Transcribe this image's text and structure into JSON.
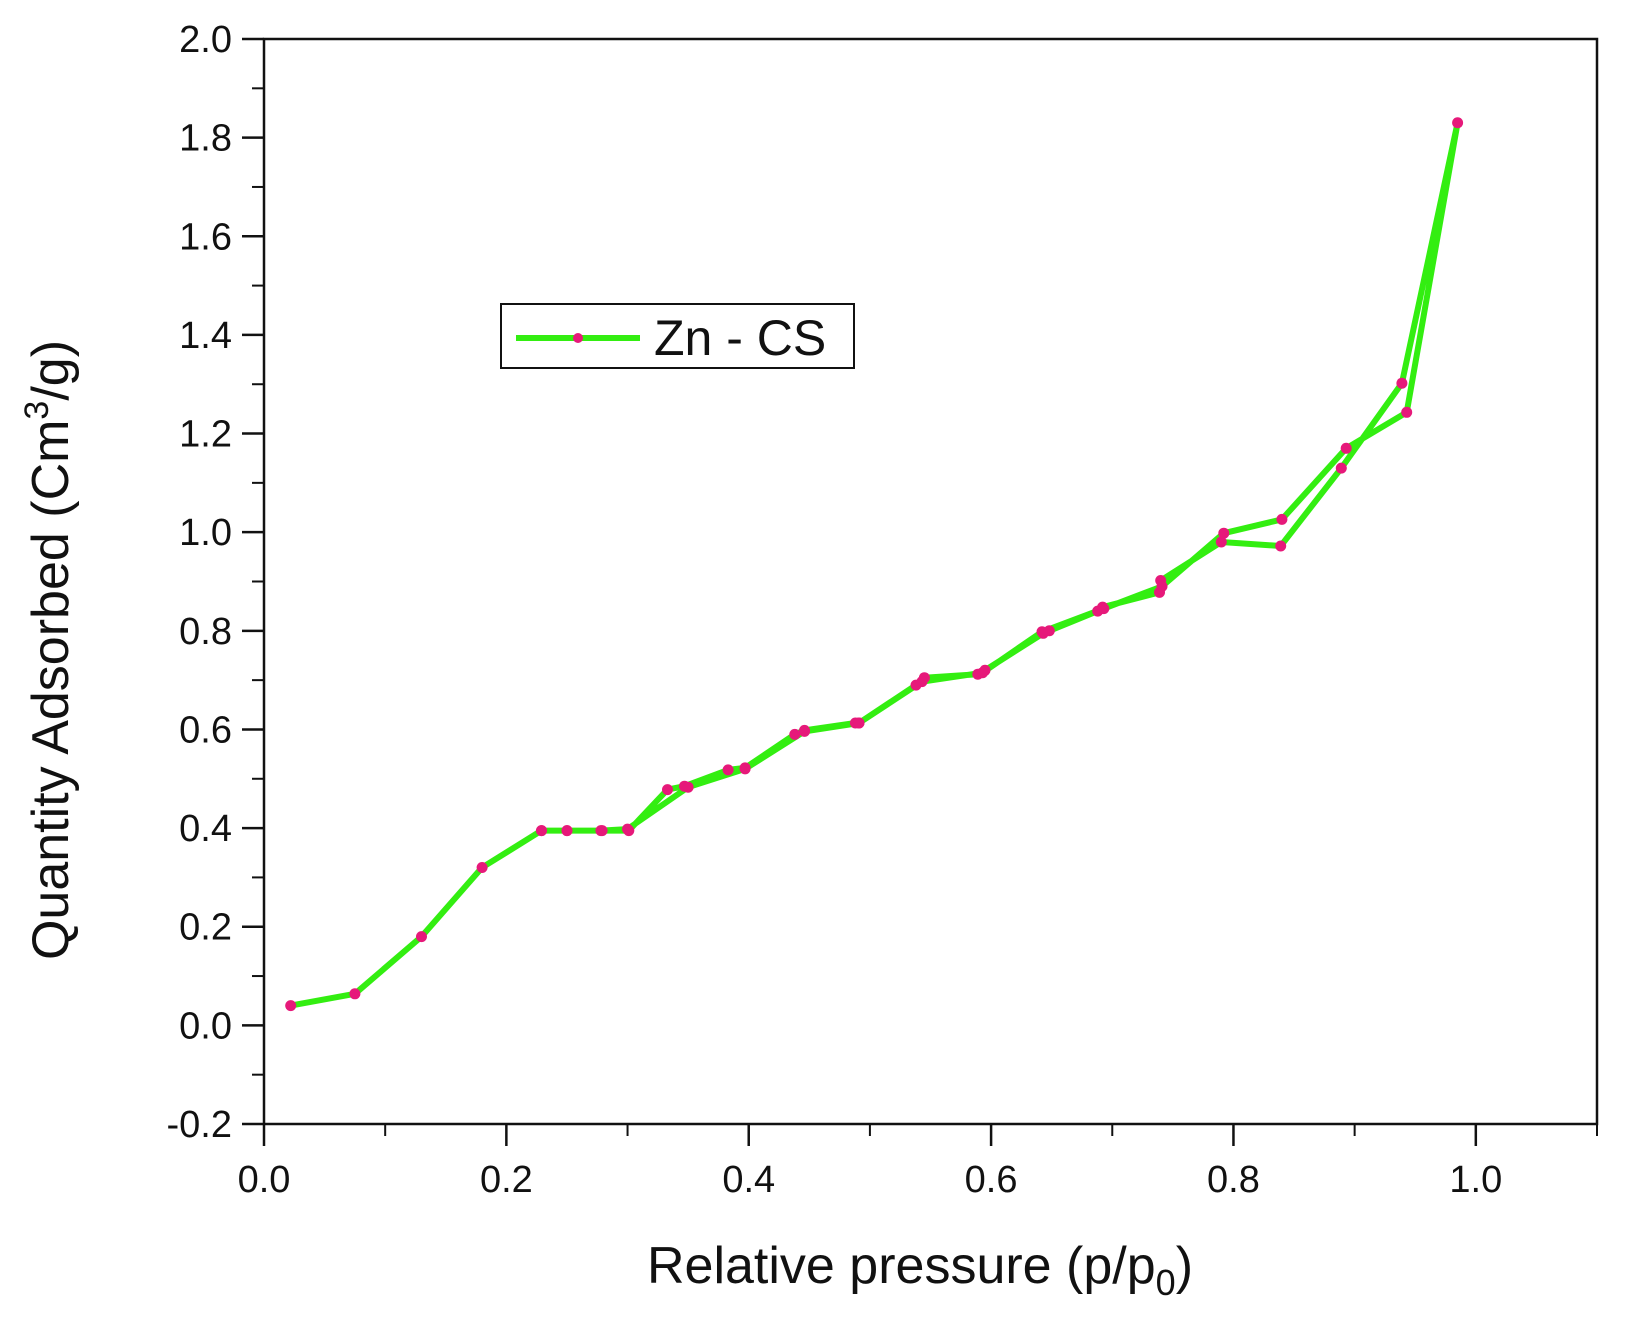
{
  "chart_data": {
    "type": "line",
    "title": "",
    "xlabel": "Relative pressure (p/p0)",
    "xlabel_parts": {
      "main": "Relative pressure (p/p",
      "sub": "0",
      "close": ")"
    },
    "ylabel": "Quantity Adsorbed (Cm3/g)",
    "ylabel_parts": {
      "pre": "Quantity Adsorbed (Cm",
      "sup": "3",
      "post": "/g)"
    },
    "xlim": [
      0.0,
      1.1
    ],
    "ylim": [
      -0.2,
      2.0
    ],
    "xticks": [
      0.0,
      0.2,
      0.4,
      0.6,
      0.8,
      1.0
    ],
    "xtick_labels": [
      "0.0",
      "0.2",
      "0.4",
      "0.6",
      "0.8",
      "1.0"
    ],
    "yticks": [
      -0.2,
      0.0,
      0.2,
      0.4,
      0.6,
      0.8,
      1.0,
      1.2,
      1.4,
      1.6,
      1.8,
      2.0
    ],
    "ytick_labels": [
      "-0.2",
      "0.0",
      "0.2",
      "0.4",
      "0.6",
      "0.8",
      "1.0",
      "1.2",
      "1.4",
      "1.6",
      "1.8",
      "2.0"
    ],
    "grid": false,
    "legend_position": "upper-left",
    "series": [
      {
        "name": "Zn - CS",
        "line_color": "#33ee11",
        "marker_color": "#e6197a",
        "x": [
          0.022,
          0.075,
          0.13,
          0.18,
          0.229,
          0.25,
          0.279,
          0.301,
          0.333,
          0.347,
          0.383,
          0.397,
          0.438,
          0.446,
          0.488,
          0.491,
          0.538,
          0.545,
          0.589,
          0.595,
          0.643,
          0.648,
          0.688,
          0.692,
          0.739,
          0.74,
          0.79,
          0.839,
          0.889,
          0.939,
          0.985,
          0.943,
          0.893,
          0.84,
          0.792,
          0.741,
          0.693,
          0.642,
          0.593,
          0.543,
          0.491,
          0.446,
          0.397,
          0.35,
          0.3,
          0.278,
          0.25,
          0.229
        ],
        "y": [
          0.04,
          0.064,
          0.18,
          0.32,
          0.395,
          0.395,
          0.395,
          0.395,
          0.478,
          0.485,
          0.518,
          0.522,
          0.59,
          0.598,
          0.613,
          0.613,
          0.69,
          0.705,
          0.712,
          0.72,
          0.795,
          0.8,
          0.84,
          0.848,
          0.878,
          0.902,
          0.98,
          0.972,
          1.13,
          1.302,
          1.83,
          1.243,
          1.17,
          1.026,
          0.998,
          0.89,
          0.845,
          0.798,
          0.715,
          0.697,
          0.613,
          0.596,
          0.52,
          0.483,
          0.398,
          0.395,
          0.395,
          0.395
        ]
      }
    ]
  }
}
